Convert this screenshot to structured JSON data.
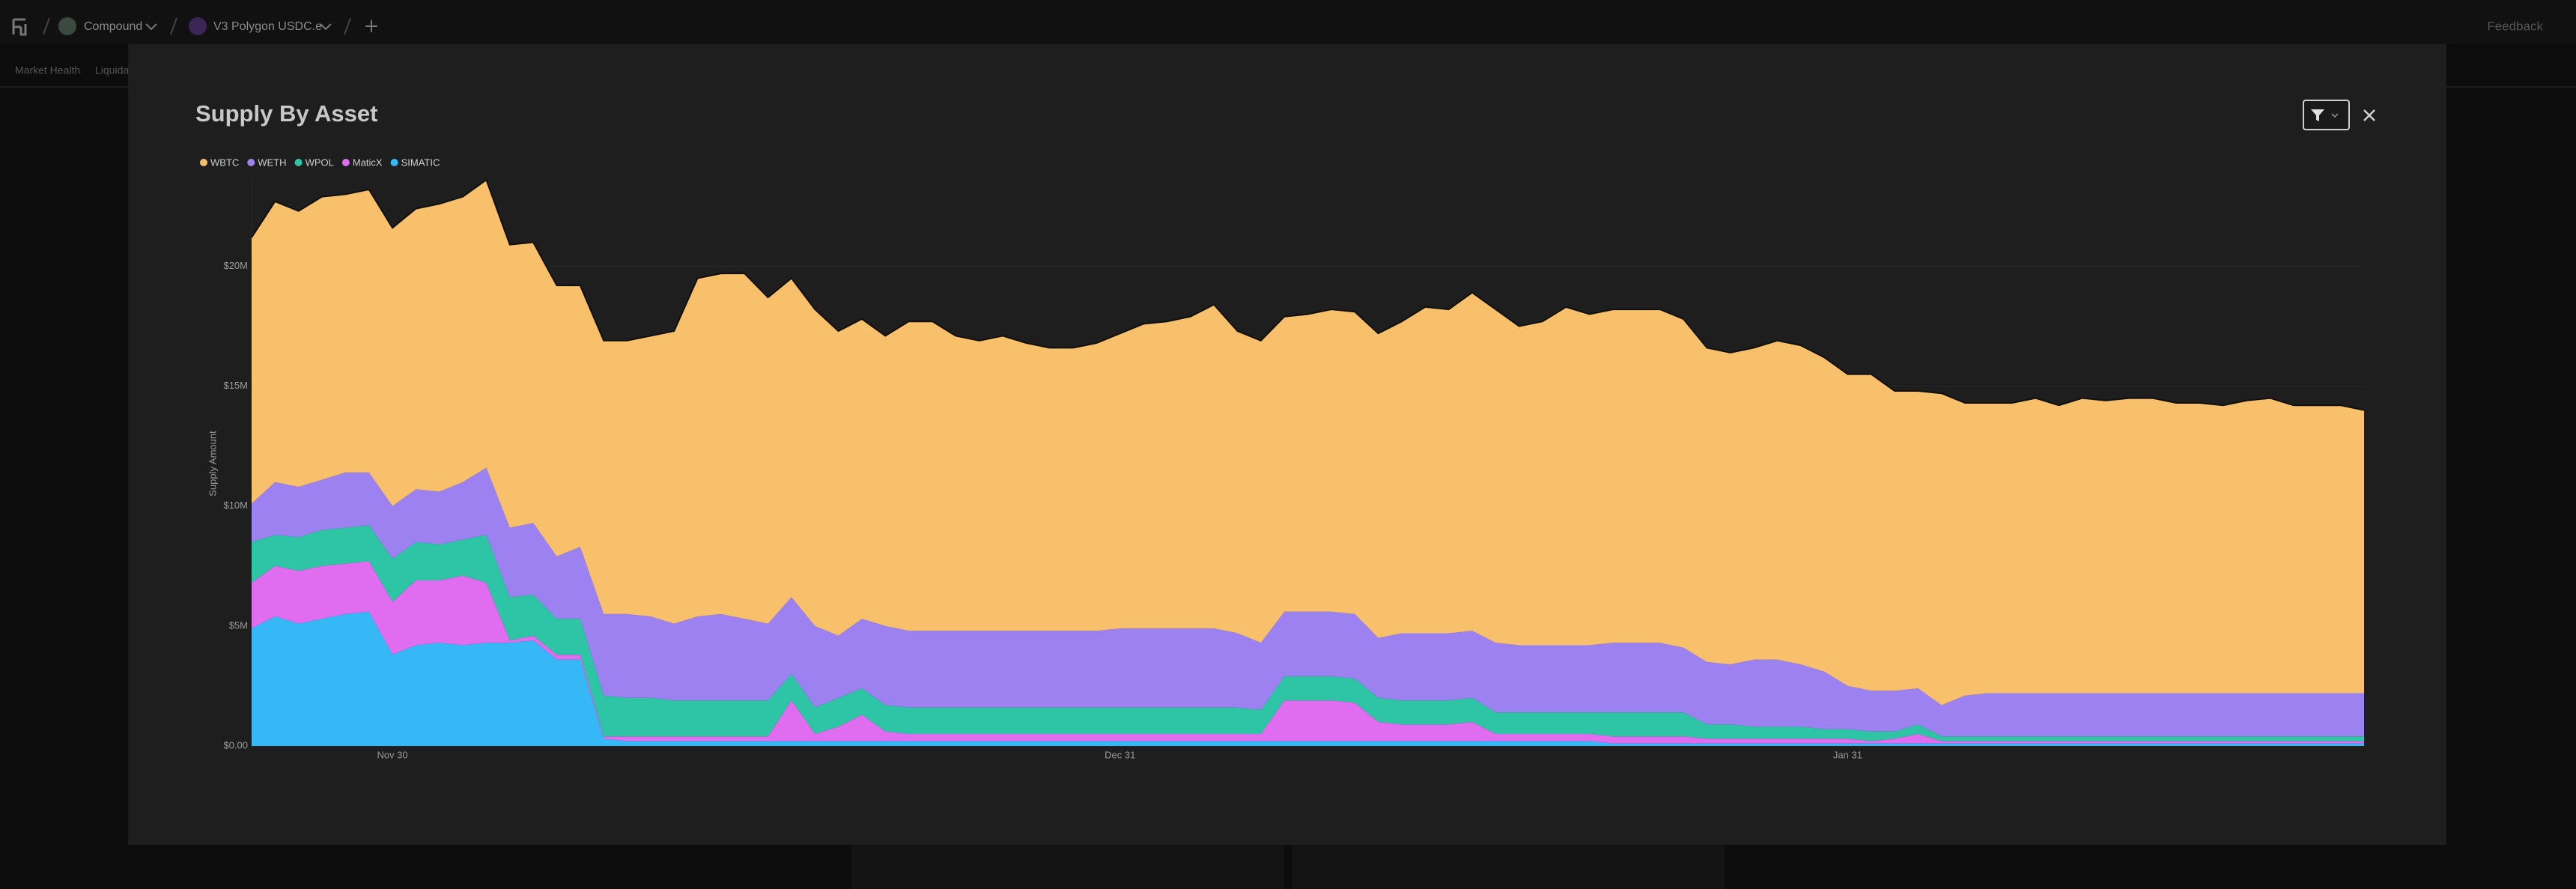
{
  "nav": {
    "protocol": "Compound",
    "market": "V3 Polygon USDC.e",
    "feedback": "Feedback"
  },
  "tabs": [
    "Market Health",
    "Liquidations"
  ],
  "chart_data": {
    "type": "area",
    "stacked": true,
    "title": "Supply By Asset",
    "y_label": "Supply Amount",
    "x": [
      "Nov 24",
      "Nov 25",
      "Nov 26",
      "Nov 27",
      "Nov 28",
      "Nov 29",
      "Nov 30",
      "Dec 1",
      "Dec 2",
      "Dec 3",
      "Dec 4",
      "Dec 5",
      "Dec 6",
      "Dec 7",
      "Dec 8",
      "Dec 9",
      "Dec 10",
      "Dec 11",
      "Dec 12",
      "Dec 13",
      "Dec 14",
      "Dec 15",
      "Dec 16",
      "Dec 17",
      "Dec 18",
      "Dec 19",
      "Dec 20",
      "Dec 21",
      "Dec 22",
      "Dec 23",
      "Dec 24",
      "Dec 25",
      "Dec 26",
      "Dec 27",
      "Dec 28",
      "Dec 29",
      "Dec 30",
      "Dec 31",
      "Jan 1",
      "Jan 2",
      "Jan 3",
      "Jan 4",
      "Jan 5",
      "Jan 6",
      "Jan 7",
      "Jan 8",
      "Jan 9",
      "Jan 10",
      "Jan 11",
      "Jan 12",
      "Jan 13",
      "Jan 14",
      "Jan 15",
      "Jan 16",
      "Jan 17",
      "Jan 18",
      "Jan 19",
      "Jan 20",
      "Jan 21",
      "Jan 22",
      "Jan 23",
      "Jan 24",
      "Jan 25",
      "Jan 26",
      "Jan 27",
      "Jan 28",
      "Jan 29",
      "Jan 30",
      "Jan 31",
      "Feb 1",
      "Feb 2",
      "Feb 3",
      "Feb 4",
      "Feb 5",
      "Feb 6",
      "Feb 7",
      "Feb 8",
      "Feb 9",
      "Feb 10",
      "Feb 11",
      "Feb 12",
      "Feb 13",
      "Feb 14",
      "Feb 15",
      "Feb 16",
      "Feb 17",
      "Feb 18",
      "Feb 19",
      "Feb 20",
      "Feb 21",
      "Feb 22"
    ],
    "xticks": [
      "Nov 30",
      "Dec 31",
      "Jan 31"
    ],
    "ylim": [
      0,
      23.7
    ],
    "yticks": [
      {
        "value": 0,
        "label": "$0.00"
      },
      {
        "value": 5,
        "label": "$5M"
      },
      {
        "value": 10,
        "label": "$10M"
      },
      {
        "value": 15,
        "label": "$15M"
      },
      {
        "value": 20,
        "label": "$20M"
      }
    ],
    "grid": true,
    "legend": "top-left",
    "series": [
      {
        "name": "WBTC",
        "color": "#f8c06b",
        "values": [
          11.1,
          11.7,
          11.5,
          11.8,
          11.6,
          11.8,
          11.6,
          11.7,
          12.0,
          11.9,
          12.0,
          11.8,
          11.7,
          11.3,
          10.9,
          11.4,
          11.4,
          11.7,
          12.2,
          14.1,
          14.2,
          14.4,
          13.6,
          13.3,
          13.2,
          12.7,
          12.5,
          12.1,
          12.9,
          12.9,
          12.3,
          12.1,
          12.3,
          12.0,
          11.8,
          11.8,
          12.0,
          12.3,
          12.7,
          12.8,
          13.0,
          13.5,
          12.6,
          12.6,
          12.3,
          12.4,
          12.6,
          12.6,
          12.7,
          13.0,
          13.6,
          13.5,
          14.1,
          13.9,
          13.3,
          13.5,
          14.1,
          13.8,
          13.9,
          13.9,
          13.9,
          13.7,
          13.1,
          13.0,
          13.0,
          13.3,
          13.3,
          13.1,
          13.0,
          13.2,
          12.5,
          12.4,
          13.0,
          12.2,
          12.1,
          12.1,
          12.3,
          12.0,
          12.3,
          12.2,
          12.3,
          12.3,
          12.1,
          12.1,
          12.0,
          12.2,
          12.3,
          12.0,
          12.0,
          12.0,
          11.8
        ]
      },
      {
        "name": "WETH",
        "color": "#9b82f0",
        "values": [
          1.6,
          2.2,
          2.1,
          2.1,
          2.3,
          2.2,
          2.2,
          2.2,
          2.2,
          2.4,
          2.8,
          2.9,
          3.0,
          2.6,
          3.0,
          3.4,
          3.5,
          3.4,
          3.2,
          3.5,
          3.6,
          3.4,
          3.2,
          3.2,
          3.4,
          2.6,
          2.9,
          3.3,
          3.2,
          3.2,
          3.2,
          3.2,
          3.2,
          3.2,
          3.2,
          3.2,
          3.2,
          3.3,
          3.3,
          3.3,
          3.3,
          3.3,
          3.1,
          2.8,
          2.7,
          2.7,
          2.7,
          2.7,
          2.5,
          2.8,
          2.8,
          2.8,
          2.8,
          2.9,
          2.8,
          2.8,
          2.8,
          2.8,
          2.9,
          2.9,
          2.9,
          2.7,
          2.6,
          2.5,
          2.8,
          2.8,
          2.6,
          2.4,
          1.8,
          1.7,
          1.7,
          1.5,
          1.3,
          1.7,
          1.8,
          1.8,
          1.8,
          1.8,
          1.8,
          1.8,
          1.8,
          1.8,
          1.8,
          1.8,
          1.8,
          1.8,
          1.8,
          1.8,
          1.8,
          1.8,
          1.8
        ]
      },
      {
        "name": "WPOL",
        "color": "#2ec4a6",
        "values": [
          1.7,
          1.3,
          1.4,
          1.5,
          1.5,
          1.5,
          1.8,
          1.6,
          1.5,
          1.5,
          2.0,
          1.8,
          1.7,
          1.5,
          1.5,
          1.7,
          1.6,
          1.6,
          1.5,
          1.5,
          1.5,
          1.5,
          1.5,
          1.1,
          1.1,
          1.2,
          1.1,
          1.1,
          1.1,
          1.1,
          1.1,
          1.1,
          1.1,
          1.1,
          1.1,
          1.1,
          1.1,
          1.1,
          1.1,
          1.1,
          1.1,
          1.1,
          1.1,
          1.0,
          1.0,
          1.0,
          1.0,
          1.0,
          1.0,
          1.0,
          1.0,
          1.0,
          1.0,
          0.9,
          0.9,
          0.9,
          0.9,
          0.9,
          1.0,
          1.0,
          1.0,
          1.0,
          0.6,
          0.6,
          0.5,
          0.5,
          0.5,
          0.4,
          0.4,
          0.4,
          0.3,
          0.4,
          0.2,
          0.2,
          0.2,
          0.2,
          0.2,
          0.2,
          0.2,
          0.2,
          0.2,
          0.2,
          0.2,
          0.2,
          0.2,
          0.2,
          0.2,
          0.2,
          0.2,
          0.2,
          0.2
        ]
      },
      {
        "name": "MaticX",
        "color": "#e06cf0",
        "values": [
          1.9,
          2.1,
          2.2,
          2.2,
          2.1,
          2.1,
          2.2,
          2.7,
          2.6,
          2.9,
          2.5,
          0.1,
          0.2,
          0.2,
          0.2,
          0.1,
          0.2,
          0.2,
          0.2,
          0.2,
          0.2,
          0.2,
          0.2,
          1.7,
          0.3,
          0.6,
          1.1,
          0.4,
          0.3,
          0.3,
          0.3,
          0.3,
          0.3,
          0.3,
          0.3,
          0.3,
          0.3,
          0.3,
          0.3,
          0.3,
          0.3,
          0.3,
          0.3,
          0.3,
          1.7,
          1.7,
          1.7,
          1.6,
          0.8,
          0.7,
          0.7,
          0.7,
          0.8,
          0.3,
          0.3,
          0.3,
          0.3,
          0.3,
          0.3,
          0.3,
          0.3,
          0.3,
          0.2,
          0.2,
          0.2,
          0.2,
          0.2,
          0.2,
          0.2,
          0.1,
          0.2,
          0.4,
          0.1,
          0.1,
          0.1,
          0.1,
          0.1,
          0.1,
          0.1,
          0.1,
          0.1,
          0.1,
          0.1,
          0.1,
          0.1,
          0.1,
          0.1,
          0.1,
          0.1,
          0.1,
          0.1
        ]
      },
      {
        "name": "SIMATIC",
        "color": "#35b8f5",
        "values": [
          4.9,
          5.4,
          5.1,
          5.3,
          5.5,
          5.6,
          3.8,
          4.2,
          4.3,
          4.2,
          4.3,
          4.3,
          4.4,
          3.6,
          3.6,
          0.3,
          0.2,
          0.2,
          0.2,
          0.2,
          0.2,
          0.2,
          0.2,
          0.2,
          0.2,
          0.2,
          0.2,
          0.2,
          0.2,
          0.2,
          0.2,
          0.2,
          0.2,
          0.2,
          0.2,
          0.2,
          0.2,
          0.2,
          0.2,
          0.2,
          0.2,
          0.2,
          0.2,
          0.2,
          0.2,
          0.2,
          0.2,
          0.2,
          0.2,
          0.2,
          0.2,
          0.2,
          0.2,
          0.2,
          0.2,
          0.2,
          0.2,
          0.2,
          0.1,
          0.1,
          0.1,
          0.1,
          0.1,
          0.1,
          0.1,
          0.1,
          0.1,
          0.1,
          0.1,
          0.1,
          0.1,
          0.1,
          0.1,
          0.1,
          0.1,
          0.1,
          0.1,
          0.1,
          0.1,
          0.1,
          0.1,
          0.1,
          0.1,
          0.1,
          0.1,
          0.1,
          0.1,
          0.1,
          0.1,
          0.1,
          0.1
        ]
      }
    ]
  }
}
